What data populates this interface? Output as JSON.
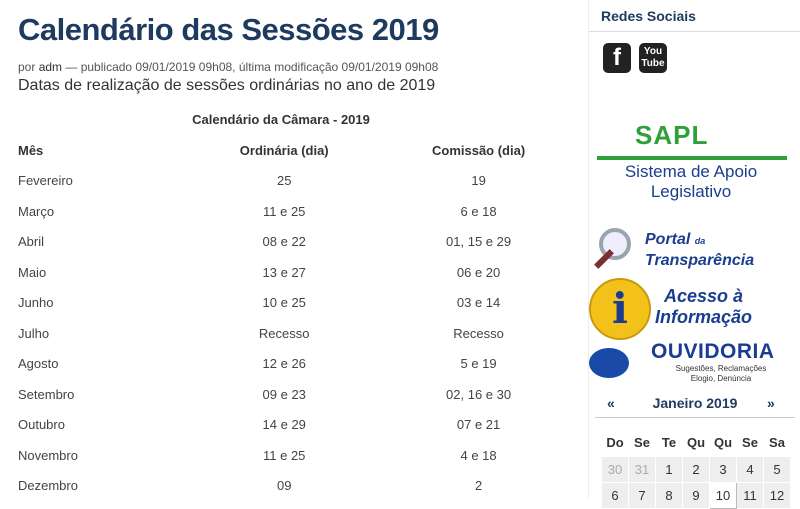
{
  "article": {
    "title": "Calendário das Sessões 2019",
    "byline_prefix": "por",
    "author": "adm",
    "byline_suffix": "— publicado 09/01/2019 09h08, última modificação 09/01/2019 09h08",
    "description": "Datas de realização de sessões ordinárias no ano de 2019"
  },
  "calendar_table": {
    "caption": "Calendário da Câmara - 2019",
    "headers": [
      "Mês",
      "Ordinária (dia)",
      "Comissão (dia)"
    ],
    "rows": [
      [
        "Fevereiro",
        "25",
        "19"
      ],
      [
        "Março",
        "11 e 25",
        "6 e 18"
      ],
      [
        "Abril",
        "08 e 22",
        "01, 15 e 29"
      ],
      [
        "Maio",
        "13 e 27",
        "06 e 20"
      ],
      [
        "Junho",
        "10 e 25",
        "03 e 14"
      ],
      [
        "Julho",
        "Recesso",
        "Recesso"
      ],
      [
        "Agosto",
        "12 e 26",
        "5 e 19"
      ],
      [
        "Setembro",
        "09 e 23",
        "02, 16 e 30"
      ],
      [
        "Outubro",
        "14 e 29",
        "07 e 21"
      ],
      [
        "Novembro",
        "11 e 25",
        "4 e 18"
      ],
      [
        "Dezembro",
        "09",
        "2"
      ]
    ]
  },
  "sidebar": {
    "social_title": "Redes Sociais",
    "social_links": [
      {
        "label": "f",
        "icon": "facebook-icon"
      },
      {
        "label": "You Tube",
        "icon": "youtube-icon"
      }
    ],
    "sapl": {
      "big": "SAPL",
      "line1": "Sistema de Apoio",
      "line2": "Legislativo"
    },
    "portal": {
      "line1": "Portal",
      "line1_small": "da",
      "line2": "Transparência"
    },
    "acesso": {
      "icon_char": "i",
      "line1": "Acesso à",
      "line2": "Informação"
    },
    "ouvidoria": {
      "big": "OUVIDORIA",
      "small1": "Sugestões, Reclamações",
      "small2": "Elogio, Denúncia"
    },
    "mini_calendar": {
      "prev": "«",
      "next": "»",
      "month_label": "Janeiro 2019",
      "weekdays": [
        "Do",
        "Se",
        "Te",
        "Qu",
        "Qu",
        "Se",
        "Sa"
      ],
      "weeks": [
        [
          "30",
          "31",
          "1",
          "2",
          "3",
          "4",
          "5"
        ],
        [
          "6",
          "7",
          "8",
          "9",
          "10",
          "11",
          "12"
        ]
      ],
      "other_month_days": [
        "30",
        "31"
      ],
      "today": "10"
    }
  },
  "colors": {
    "heading": "#1e3a5f",
    "sapl_green": "#2fa03a",
    "brand_blue": "#1a3d8f",
    "info_yellow": "#f2c21b"
  }
}
